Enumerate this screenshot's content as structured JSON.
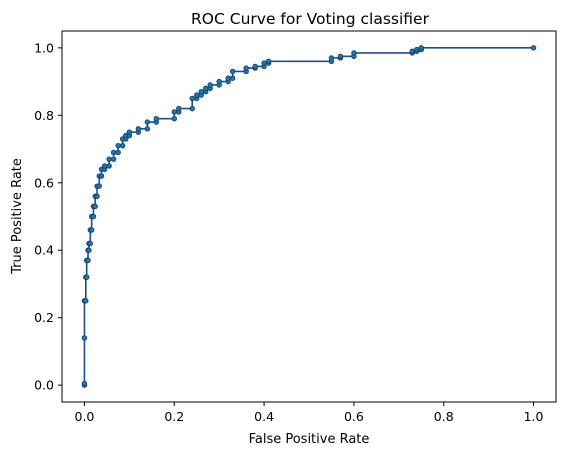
{
  "chart_data": {
    "type": "line",
    "title": "ROC Curve for Voting classifier",
    "xlabel": "False Positive Rate",
    "ylabel": "True Positive Rate",
    "xlim": [
      -0.05,
      1.05
    ],
    "ylim": [
      -0.05,
      1.05
    ],
    "xticks": [
      0.0,
      0.2,
      0.4,
      0.6,
      0.8,
      1.0
    ],
    "yticks": [
      0.0,
      0.2,
      0.4,
      0.6,
      0.8,
      1.0
    ],
    "xtick_labels": [
      "0.0",
      "0.2",
      "0.4",
      "0.6",
      "0.8",
      "1.0"
    ],
    "ytick_labels": [
      "0.0",
      "0.2",
      "0.4",
      "0.6",
      "0.8",
      "1.0"
    ],
    "grid": false,
    "legend": "none",
    "line_color": "#1f4e8c",
    "marker_color": "#1f77b4",
    "series": [
      {
        "x": [
          0.0,
          0.0,
          0.0,
          0.0,
          0.003,
          0.003,
          0.005,
          0.005,
          0.008,
          0.008,
          0.01,
          0.01,
          0.013,
          0.013,
          0.016,
          0.016,
          0.02,
          0.02,
          0.024,
          0.024,
          0.028,
          0.028,
          0.033,
          0.033,
          0.038,
          0.038,
          0.045,
          0.045,
          0.055,
          0.055,
          0.065,
          0.065,
          0.075,
          0.075,
          0.085,
          0.085,
          0.092,
          0.092,
          0.1,
          0.1,
          0.12,
          0.12,
          0.14,
          0.14,
          0.16,
          0.16,
          0.2,
          0.2,
          0.21,
          0.21,
          0.24,
          0.24,
          0.25,
          0.25,
          0.26,
          0.26,
          0.27,
          0.27,
          0.28,
          0.28,
          0.3,
          0.3,
          0.32,
          0.32,
          0.33,
          0.33,
          0.36,
          0.36,
          0.38,
          0.38,
          0.4,
          0.4,
          0.41,
          0.41,
          0.55,
          0.55,
          0.57,
          0.57,
          0.6,
          0.6,
          0.73,
          0.73,
          0.74,
          0.74,
          0.75,
          0.75,
          1.0
        ],
        "y": [
          0.0,
          0.005,
          0.14,
          0.25,
          0.25,
          0.32,
          0.32,
          0.37,
          0.37,
          0.4,
          0.4,
          0.42,
          0.42,
          0.46,
          0.46,
          0.5,
          0.5,
          0.53,
          0.53,
          0.56,
          0.56,
          0.59,
          0.59,
          0.62,
          0.62,
          0.64,
          0.64,
          0.65,
          0.65,
          0.67,
          0.67,
          0.69,
          0.69,
          0.71,
          0.71,
          0.73,
          0.73,
          0.74,
          0.74,
          0.75,
          0.75,
          0.76,
          0.76,
          0.78,
          0.78,
          0.79,
          0.79,
          0.81,
          0.81,
          0.82,
          0.82,
          0.85,
          0.85,
          0.86,
          0.86,
          0.87,
          0.87,
          0.88,
          0.88,
          0.89,
          0.89,
          0.9,
          0.9,
          0.91,
          0.91,
          0.93,
          0.93,
          0.94,
          0.94,
          0.945,
          0.945,
          0.955,
          0.955,
          0.96,
          0.96,
          0.97,
          0.97,
          0.975,
          0.975,
          0.985,
          0.985,
          0.99,
          0.99,
          0.995,
          0.995,
          1.0,
          1.0
        ]
      }
    ]
  }
}
